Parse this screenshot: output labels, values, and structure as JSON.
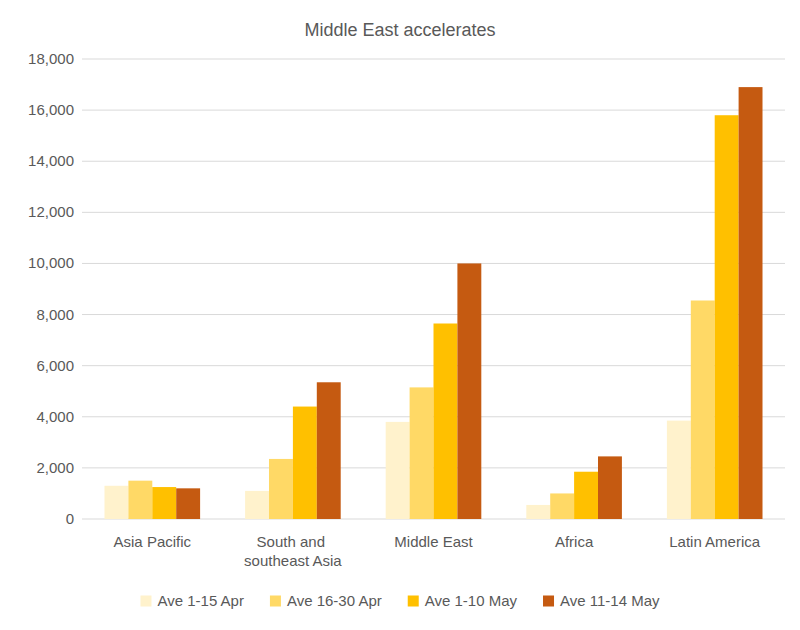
{
  "chart_data": {
    "type": "bar",
    "title": "Middle East accelerates",
    "categories": [
      "Asia Pacific",
      "South and southeast Asia",
      "Middle East",
      "Africa",
      "Latin America"
    ],
    "series": [
      {
        "name": "Ave 1-15 Apr",
        "color": "#fff2cc",
        "values": [
          1300,
          1100,
          3800,
          550,
          3850
        ]
      },
      {
        "name": "Ave 16-30 Apr",
        "color": "#ffd966",
        "values": [
          1500,
          2350,
          5150,
          1000,
          8550
        ]
      },
      {
        "name": "Ave 1-10 May",
        "color": "#ffc000",
        "values": [
          1250,
          4400,
          7650,
          1850,
          15800
        ]
      },
      {
        "name": "Ave 11-14 May",
        "color": "#c55a11",
        "values": [
          1200,
          5350,
          10000,
          2450,
          16900
        ]
      }
    ],
    "ylim": [
      0,
      18000
    ],
    "yticks": [
      0,
      {
        "value": 2000,
        "label": "2,000"
      },
      {
        "value": 4000,
        "label": "4,000"
      },
      {
        "value": 6000,
        "label": "6,000"
      },
      {
        "value": 8000,
        "label": "8,000"
      },
      {
        "value": 10000,
        "label": "10,000"
      },
      {
        "value": 12000,
        "label": "12,000"
      },
      {
        "value": 14000,
        "label": "14,000"
      },
      {
        "value": 16000,
        "label": "16,000"
      },
      {
        "value": 18000,
        "label": "18,000"
      }
    ],
    "grid": true,
    "legend": "bottom"
  }
}
